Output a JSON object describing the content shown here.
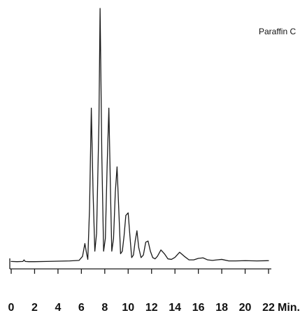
{
  "chart_data": {
    "type": "line",
    "annotation": "Paraffin C",
    "x_unit_label": "Min.",
    "xlim": [
      0,
      22
    ],
    "ylim": [
      0,
      100
    ],
    "xticks": [
      0,
      2,
      4,
      6,
      8,
      10,
      12,
      14,
      16,
      18,
      20,
      22
    ],
    "tick_labels": [
      "0",
      "2",
      "4",
      "6",
      "8",
      "10",
      "12",
      "14",
      "16",
      "18",
      "20",
      "22"
    ],
    "grid": false,
    "legend": "none",
    "colors": {
      "line": "#1a1a1a",
      "axis": "#1a1a1a",
      "background": "#ffffff"
    },
    "series": [
      {
        "x": [
          0.0,
          0.5,
          1.0,
          1.1,
          1.2,
          1.5,
          2.0,
          3.0,
          4.0,
          5.0,
          5.8,
          6.1,
          6.3,
          6.45,
          6.55,
          6.7,
          6.85,
          7.0,
          7.15,
          7.3,
          7.5,
          7.6,
          7.75,
          7.9,
          8.05,
          8.2,
          8.35,
          8.5,
          8.6,
          8.75,
          8.9,
          9.05,
          9.2,
          9.35,
          9.5,
          9.65,
          9.8,
          10.0,
          10.15,
          10.3,
          10.45,
          10.6,
          10.75,
          10.9,
          11.1,
          11.3,
          11.5,
          11.7,
          11.9,
          12.1,
          12.3,
          12.5,
          12.8,
          13.1,
          13.4,
          13.7,
          14.0,
          14.4,
          14.8,
          15.2,
          15.6,
          16.0,
          16.4,
          16.8,
          17.2,
          17.6,
          18.0,
          18.6,
          19.2,
          20.0,
          21.0,
          22.0
        ],
        "y": [
          1.0,
          0.9,
          1.0,
          1.6,
          1.0,
          0.9,
          0.9,
          1.0,
          1.1,
          1.2,
          1.4,
          3.0,
          8.0,
          4.0,
          1.8,
          22.0,
          61.0,
          28.0,
          5.0,
          12.0,
          55.0,
          100.0,
          42.0,
          5.0,
          10.0,
          38.0,
          61.0,
          26.0,
          5.0,
          10.0,
          28.0,
          38.0,
          21.0,
          4.0,
          5.0,
          11.0,
          19.0,
          20.0,
          11.0,
          2.5,
          3.5,
          9.0,
          13.0,
          6.5,
          2.5,
          3.5,
          8.5,
          9.0,
          5.0,
          2.5,
          2.0,
          3.0,
          5.5,
          4.0,
          2.0,
          1.8,
          2.6,
          4.6,
          3.0,
          1.6,
          1.6,
          2.2,
          2.4,
          1.6,
          1.4,
          1.6,
          1.8,
          1.2,
          1.2,
          1.3,
          1.2,
          1.3
        ]
      }
    ]
  }
}
